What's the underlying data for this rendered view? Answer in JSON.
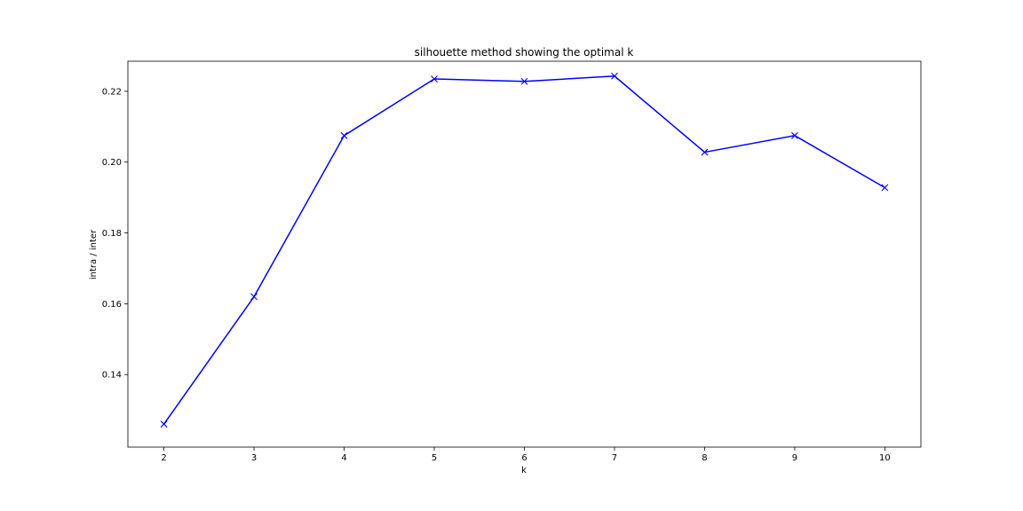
{
  "chart_data": {
    "type": "line",
    "title": "silhouette method showing the optimal k",
    "xlabel": "k",
    "ylabel": "intra / inter",
    "x": [
      2,
      3,
      4,
      5,
      6,
      7,
      8,
      9,
      10
    ],
    "series": [
      {
        "values": [
          0.126,
          0.162,
          0.2075,
          0.2235,
          0.2228,
          0.2243,
          0.2028,
          0.2075,
          0.1928
        ],
        "color": "#0000ff",
        "marker": "x"
      }
    ],
    "xlim": [
      1.6,
      10.4
    ],
    "ylim": [
      0.1195,
      0.2285
    ],
    "xticks": [
      2,
      3,
      4,
      5,
      6,
      7,
      8,
      9,
      10
    ],
    "xtick_labels": [
      "2",
      "3",
      "4",
      "5",
      "6",
      "7",
      "8",
      "9",
      "10"
    ],
    "yticks": [
      0.14,
      0.16,
      0.18,
      0.2,
      0.22
    ],
    "ytick_labels": [
      "0.14",
      "0.16",
      "0.18",
      "0.20",
      "0.22"
    ],
    "grid": false,
    "legend": "none"
  }
}
